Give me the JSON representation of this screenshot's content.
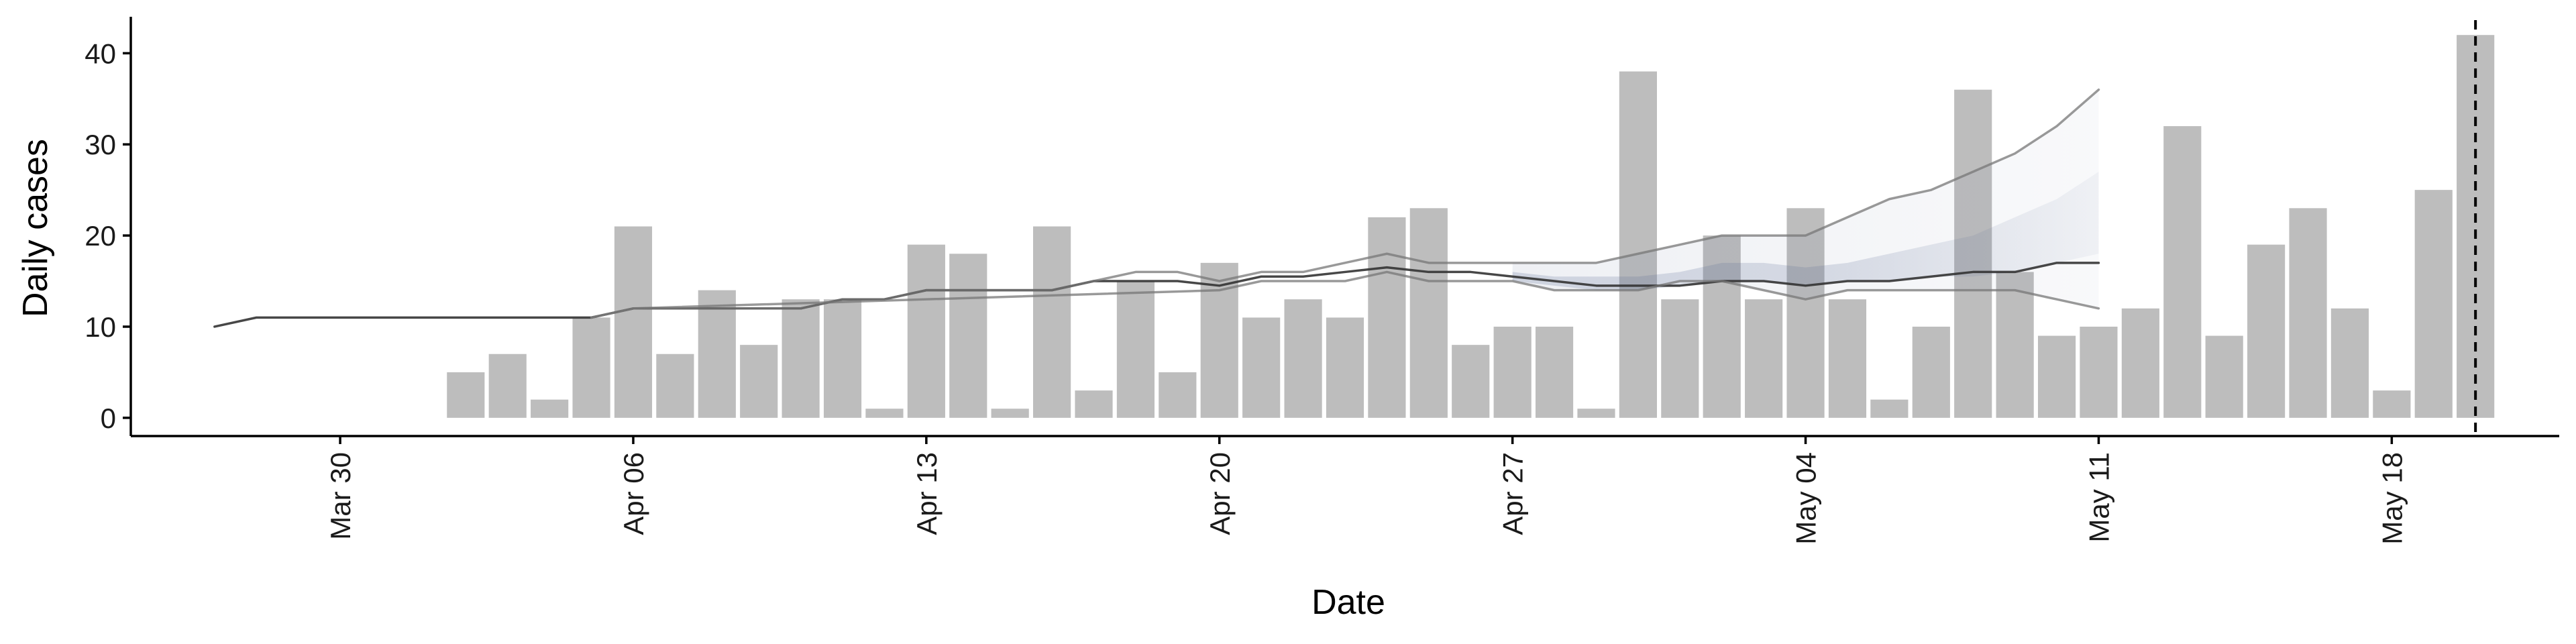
{
  "chart_data": {
    "type": "bar",
    "xlabel": "Date",
    "ylabel": "Daily cases",
    "ylim": [
      -2,
      44
    ],
    "xlim": [
      "2020-03-25",
      "2020-05-22"
    ],
    "yticks": [
      0,
      10,
      20,
      30,
      40
    ],
    "xticks": [
      {
        "date": "2020-03-30",
        "label": "Mar 30"
      },
      {
        "date": "2020-04-06",
        "label": "Apr 06"
      },
      {
        "date": "2020-04-13",
        "label": "Apr 13"
      },
      {
        "date": "2020-04-20",
        "label": "Apr 20"
      },
      {
        "date": "2020-04-27",
        "label": "Apr 27"
      },
      {
        "date": "2020-05-04",
        "label": "May 04"
      },
      {
        "date": "2020-05-11",
        "label": "May 11"
      },
      {
        "date": "2020-05-18",
        "label": "May 18"
      }
    ],
    "grid": false,
    "legend": "none",
    "colors": {
      "bars": "#bdbdbd",
      "axis": "#000000",
      "band": "#5a6b94",
      "line_dark": "#333333",
      "line_mid": "#777777",
      "vline": "#000000"
    },
    "bars": {
      "start": "2020-04-02",
      "values": [
        5,
        7,
        2,
        11,
        21,
        7,
        14,
        8,
        13,
        13,
        1,
        19,
        18,
        1,
        21,
        3,
        15,
        5,
        17,
        11,
        13,
        11,
        22,
        23,
        8,
        10,
        10,
        1,
        38,
        13,
        20,
        13,
        23,
        13,
        2,
        10,
        36,
        16,
        9,
        10,
        12,
        32,
        9,
        19,
        23,
        12,
        3,
        25,
        42
      ]
    },
    "ribbon_lines": [
      {
        "role": "estimate",
        "style": "dark",
        "x": [
          "2020-03-27",
          "2020-03-28",
          "2020-03-29",
          "2020-03-30",
          "2020-03-31",
          "2020-04-01",
          "2020-04-02",
          "2020-04-03",
          "2020-04-04",
          "2020-04-05",
          "2020-04-06",
          "2020-04-07",
          "2020-04-08",
          "2020-04-09",
          "2020-04-10",
          "2020-04-11",
          "2020-04-12",
          "2020-04-13",
          "2020-04-14",
          "2020-04-15",
          "2020-04-16",
          "2020-04-17",
          "2020-04-18",
          "2020-04-19",
          "2020-04-20",
          "2020-04-21",
          "2020-04-22",
          "2020-04-23",
          "2020-04-24",
          "2020-04-25",
          "2020-04-26",
          "2020-04-27",
          "2020-04-28",
          "2020-04-29",
          "2020-04-30",
          "2020-05-01",
          "2020-05-02",
          "2020-05-03",
          "2020-05-04",
          "2020-05-05",
          "2020-05-06",
          "2020-05-07",
          "2020-05-08",
          "2020-05-09",
          "2020-05-10",
          "2020-05-11"
        ],
        "y": [
          10,
          11,
          11,
          11,
          11,
          11,
          11,
          11,
          11,
          11,
          12,
          12,
          12,
          12,
          12,
          13,
          13,
          14,
          14,
          14,
          14,
          15,
          15,
          15,
          14.5,
          15.5,
          15.5,
          16,
          16.5,
          16,
          16,
          15.5,
          15,
          14.5,
          14.5,
          14.5,
          15,
          15,
          14.5,
          15,
          15,
          15.5,
          16,
          16,
          17,
          17
        ]
      },
      {
        "role": "upper",
        "style": "mid",
        "x": [
          "2020-04-05",
          "2020-04-06",
          "2020-04-10",
          "2020-04-11",
          "2020-04-12",
          "2020-04-13",
          "2020-04-16",
          "2020-04-17",
          "2020-04-18",
          "2020-04-19",
          "2020-04-20",
          "2020-04-21",
          "2020-04-22",
          "2020-04-23",
          "2020-04-24",
          "2020-04-25",
          "2020-04-26",
          "2020-04-27",
          "2020-04-28",
          "2020-04-29",
          "2020-04-30",
          "2020-05-01",
          "2020-05-02",
          "2020-05-03",
          "2020-05-04",
          "2020-05-05",
          "2020-05-06",
          "2020-05-07",
          "2020-05-08",
          "2020-05-09",
          "2020-05-10",
          "2020-05-11"
        ],
        "y": [
          11,
          12,
          12,
          13,
          13,
          14,
          14,
          15,
          16,
          16,
          15,
          16,
          16,
          17,
          18,
          17,
          17,
          17,
          17,
          17,
          18,
          19,
          20,
          20,
          20,
          22,
          24,
          25,
          27,
          29,
          32,
          36
        ]
      },
      {
        "role": "lower",
        "style": "mid",
        "x": [
          "2020-04-05",
          "2020-04-06",
          "2020-04-20",
          "2020-04-21",
          "2020-04-22",
          "2020-04-23",
          "2020-04-24",
          "2020-04-25",
          "2020-04-26",
          "2020-04-27",
          "2020-04-28",
          "2020-04-29",
          "2020-04-30",
          "2020-05-01",
          "2020-05-02",
          "2020-05-03",
          "2020-05-04",
          "2020-05-05",
          "2020-05-06",
          "2020-05-07",
          "2020-05-08",
          "2020-05-09",
          "2020-05-10",
          "2020-05-11"
        ],
        "y": [
          11,
          12,
          14,
          15,
          15,
          15,
          16,
          15,
          15,
          15,
          14,
          14,
          14,
          15,
          15,
          14,
          13,
          14,
          14,
          14,
          14,
          14,
          13,
          12
        ]
      }
    ],
    "band": {
      "x": [
        "2020-04-27",
        "2020-04-28",
        "2020-04-29",
        "2020-04-30",
        "2020-05-01",
        "2020-05-02",
        "2020-05-03",
        "2020-05-04",
        "2020-05-05",
        "2020-05-06",
        "2020-05-07",
        "2020-05-08",
        "2020-05-09",
        "2020-05-10",
        "2020-05-11"
      ],
      "lower": [
        15,
        14.5,
        14,
        14,
        14.5,
        15,
        15,
        14.5,
        15,
        15,
        15.5,
        15.5,
        16,
        17,
        18
      ],
      "upper": [
        16,
        15.5,
        15.5,
        15.5,
        16,
        17,
        17,
        16.5,
        17,
        18,
        19,
        20,
        22,
        24,
        27
      ]
    },
    "vline": "2020-05-20"
  }
}
